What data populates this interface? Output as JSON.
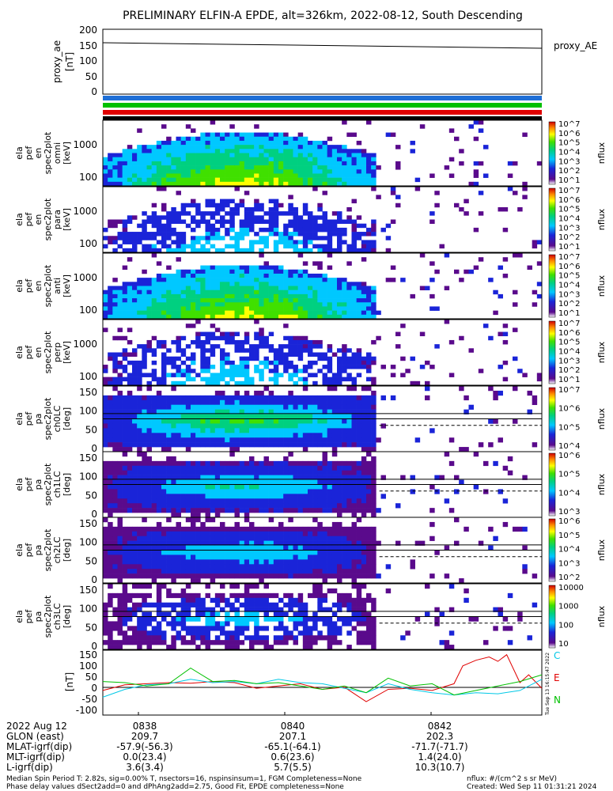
{
  "title": "PRELIMINARY ELFIN-A EPDE, alt=326km, 2022-08-12, South Descending",
  "proxy_panel": {
    "ylabel": [
      "proxy_ae",
      "[nT]"
    ],
    "legend": "proxy_AE",
    "yticks": [
      "200",
      "150",
      "100",
      "50",
      "0"
    ],
    "ylim": [
      0,
      200
    ]
  },
  "bars": {
    "colors": [
      "#1f6fd6",
      "#00c000",
      "#e00000",
      "#000000"
    ]
  },
  "spec_panels": [
    {
      "ylabel": [
        "ela",
        "pef",
        "en",
        "spec2plot",
        "omni",
        "[keV]"
      ],
      "yticks": [
        "1000",
        "100"
      ],
      "cbar_ticks": [
        "10^7",
        "10^6",
        "10^5",
        "10^4",
        "10^3",
        "10^2",
        "10^1"
      ],
      "cbar_label": "nflux"
    },
    {
      "ylabel": [
        "ela",
        "pef",
        "en",
        "spec2plot",
        "para",
        "[keV]"
      ],
      "yticks": [
        "1000",
        "100"
      ],
      "cbar_ticks": [
        "10^7",
        "10^6",
        "10^5",
        "10^4",
        "10^3",
        "10^2",
        "10^1"
      ],
      "cbar_label": "nflux"
    },
    {
      "ylabel": [
        "ela",
        "pef",
        "en",
        "spec2plot",
        "anti",
        "[keV]"
      ],
      "yticks": [
        "1000",
        "100"
      ],
      "cbar_ticks": [
        "10^7",
        "10^6",
        "10^5",
        "10^4",
        "10^3",
        "10^2",
        "10^1"
      ],
      "cbar_label": "nflux"
    },
    {
      "ylabel": [
        "ela",
        "pef",
        "en",
        "spec2plot",
        "perp",
        "[keV]"
      ],
      "yticks": [
        "1000",
        "100"
      ],
      "cbar_ticks": [
        "10^7",
        "10^6",
        "10^5",
        "10^4",
        "10^3",
        "10^2",
        "10^1"
      ],
      "cbar_label": "nflux"
    },
    {
      "ylabel": [
        "ela",
        "pef",
        "pa",
        "spec2plot",
        "ch0LC",
        "[deg]"
      ],
      "yticks": [
        "150",
        "100",
        "50",
        "0"
      ],
      "cbar_ticks": [
        "10^7",
        "10^6",
        "10^5",
        "10^4"
      ],
      "cbar_label": "nflux"
    },
    {
      "ylabel": [
        "ela",
        "pef",
        "pa",
        "spec2plot",
        "ch1LC",
        "[deg]"
      ],
      "yticks": [
        "150",
        "100",
        "50",
        "0"
      ],
      "cbar_ticks": [
        "10^6",
        "10^5",
        "10^4",
        "10^3"
      ],
      "cbar_label": "nflux"
    },
    {
      "ylabel": [
        "ela",
        "pef",
        "pa",
        "spec2plot",
        "ch2LC",
        "[deg]"
      ],
      "yticks": [
        "150",
        "100",
        "50",
        "0"
      ],
      "cbar_ticks": [
        "10^6",
        "10^5",
        "10^4",
        "10^3",
        "10^2"
      ],
      "cbar_label": "nflux"
    },
    {
      "ylabel": [
        "ela",
        "pef",
        "pa",
        "spec2plot",
        "ch3LC",
        "[deg]"
      ],
      "yticks": [
        "150",
        "100",
        "50",
        "0"
      ],
      "cbar_ticks": [
        "10000",
        "1000",
        "100",
        "10"
      ],
      "cbar_label": "nflux"
    }
  ],
  "field_panel": {
    "ylabel": "[nT]",
    "yticks": [
      "150",
      "100",
      "50",
      "0",
      "-50",
      "-100"
    ],
    "legend": [
      {
        "name": "C",
        "color": "#00c8e6"
      },
      {
        "name": "E",
        "color": "#e00000"
      },
      {
        "name": "N",
        "color": "#00c000"
      }
    ],
    "side_note": "Tue Sep 13 16:15:47 2022"
  },
  "footer": {
    "rows": [
      {
        "label": "2022 Aug 12",
        "values": [
          "0838",
          "0840",
          "0842"
        ]
      },
      {
        "label": "GLON (east)",
        "values": [
          "209.7",
          "207.1",
          "202.3"
        ]
      },
      {
        "label": "MLAT-igrf(dip)",
        "values": [
          "-57.9(-56.3)",
          "-65.1(-64.1)",
          "-71.7(-71.7)"
        ]
      },
      {
        "label": "MLT-igrf(dip)",
        "values": [
          "0.0(23.4)",
          "0.6(23.6)",
          "1.4(24.0)"
        ]
      },
      {
        "label": "L-igrf(dip)",
        "values": [
          "3.6(3.4)",
          "5.7(5.5)",
          "10.3(10.7)"
        ]
      }
    ],
    "note1": "Median Spin Period T: 2.82s, sig=0.00% T, nsectors=16, nspinsinsum=1, FGM Completeness=None",
    "note2": "Phase delay values dSect2add=0 and dPhAng2add=2.75, Good Fit, EPDE completeness=None",
    "units": "nflux: #/(cm^2 s sr MeV)",
    "created": "Created: Wed Sep 11 01:31:21 2024"
  },
  "chart_data": {
    "type": "heatmap",
    "title": "PRELIMINARY ELFIN-A EPDE, alt=326km, 2022-08-12, South Descending",
    "x_ticks": [
      "0838",
      "0840",
      "0842"
    ],
    "proxy_ae": {
      "x": [
        "0837",
        "0843.5"
      ],
      "y": [
        155,
        137
      ],
      "ylim": [
        0,
        200
      ],
      "series_name": "proxy_AE"
    },
    "field": {
      "ylim": [
        -120,
        170
      ],
      "series": [
        {
          "name": "E",
          "x": [
            0.0,
            0.05,
            0.1,
            0.15,
            0.2,
            0.25,
            0.3,
            0.35,
            0.4,
            0.45,
            0.5,
            0.55,
            0.6,
            0.65,
            0.7,
            0.75,
            0.8,
            0.82,
            0.85,
            0.88,
            0.9,
            0.92,
            0.95,
            0.97,
            1.0
          ],
          "y": [
            -10,
            15,
            20,
            25,
            22,
            30,
            25,
            0,
            10,
            20,
            -5,
            5,
            -60,
            -5,
            0,
            -10,
            20,
            100,
            125,
            140,
            120,
            150,
            25,
            60,
            0
          ]
        },
        {
          "name": "C",
          "x": [
            0.0,
            0.05,
            0.1,
            0.15,
            0.2,
            0.25,
            0.3,
            0.35,
            0.4,
            0.45,
            0.5,
            0.55,
            0.6,
            0.65,
            0.7,
            0.75,
            0.8,
            0.85,
            0.9,
            0.95,
            1.0
          ],
          "y": [
            -40,
            -5,
            15,
            20,
            40,
            25,
            30,
            20,
            40,
            25,
            20,
            0,
            -20,
            20,
            -5,
            -20,
            -30,
            -20,
            -25,
            -10,
            40
          ]
        },
        {
          "name": "N",
          "x": [
            0.0,
            0.05,
            0.1,
            0.15,
            0.2,
            0.25,
            0.3,
            0.35,
            0.4,
            0.45,
            0.5,
            0.55,
            0.6,
            0.65,
            0.7,
            0.75,
            0.8,
            0.85,
            0.9,
            0.95,
            1.0
          ],
          "y": [
            30,
            25,
            10,
            20,
            90,
            30,
            35,
            20,
            25,
            10,
            -5,
            10,
            -20,
            45,
            10,
            20,
            -30,
            -10,
            10,
            30,
            60
          ]
        }
      ]
    }
  }
}
